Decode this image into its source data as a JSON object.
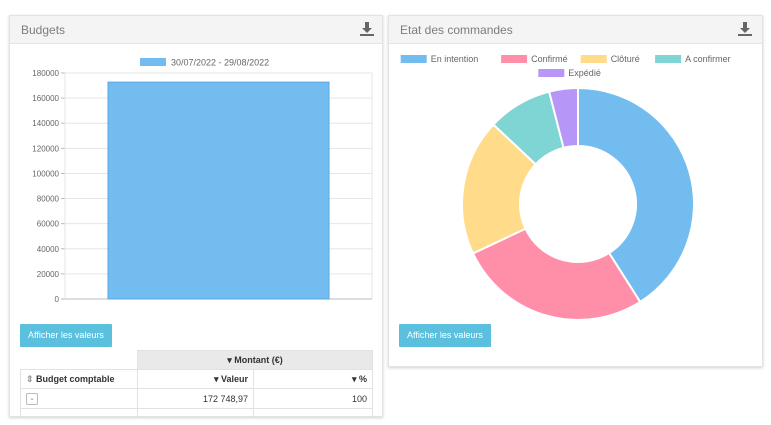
{
  "colors": {
    "accent": "#5bc0de",
    "bar": "#72bcf0"
  },
  "budgets": {
    "title": "Budgets",
    "download_icon": "download-icon",
    "show_values_label": "Afficher les valeurs",
    "table": {
      "montant_header": "Montant (€)",
      "budget_col": "Budget comptable",
      "valeur_col": "Valeur",
      "percent_col": "%",
      "rows": [
        {
          "valeur": "172 748,97",
          "percent": "100"
        }
      ]
    }
  },
  "commandes": {
    "title": "Etat des commandes",
    "download_icon": "download-icon",
    "show_values_label": "Afficher les valeurs"
  },
  "chart_data": [
    {
      "type": "bar",
      "categories": [
        ""
      ],
      "series": [
        {
          "name": "30/07/2022 - 29/08/2022",
          "values": [
            172748.97
          ]
        }
      ],
      "ylim": [
        0,
        180000
      ],
      "yticks": [
        "0",
        "20000",
        "40000",
        "60000",
        "80000",
        "100000",
        "120000",
        "140000",
        "160000",
        "180000"
      ],
      "legend_position": "top",
      "grid": true,
      "colors": [
        "#72bcf0"
      ]
    },
    {
      "type": "pie",
      "labels": [
        "En intention",
        "Confirmé",
        "Clôturé",
        "A confirmer",
        "Expédié"
      ],
      "values": [
        41,
        27,
        19,
        9,
        4
      ],
      "colors": [
        "#72bcf0",
        "#ff8fa8",
        "#ffdb8a",
        "#7fd4d4",
        "#b696f7"
      ],
      "legend_position": "top"
    }
  ]
}
